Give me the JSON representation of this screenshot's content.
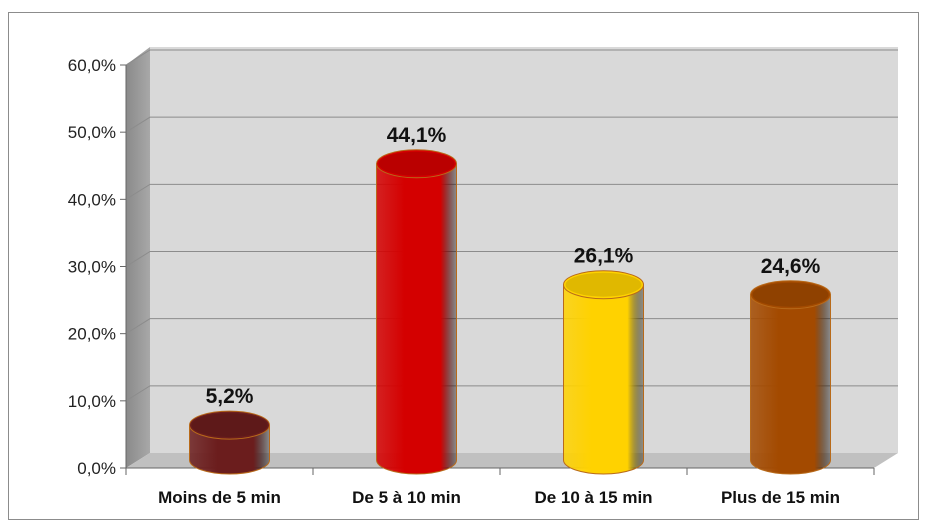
{
  "chart_data": {
    "type": "bar",
    "title": "",
    "xlabel": "",
    "ylabel": "",
    "categories": [
      "Moins de 5 min",
      "De 5 à 10 min",
      "De 10 à 15 min",
      "Plus de 15 min"
    ],
    "values": [
      5.2,
      44.1,
      26.1,
      24.6
    ],
    "data_labels": [
      "5,2%",
      "44,1%",
      "26,1%",
      "24,6%"
    ],
    "ylim": [
      0,
      60
    ],
    "yticks": [
      0,
      10,
      20,
      30,
      40,
      50,
      60
    ],
    "ytick_labels": [
      "0,0%",
      "10,0%",
      "20,0%",
      "30,0%",
      "40,0%",
      "50,0%",
      "60,0%"
    ],
    "grid": true,
    "legend": "none",
    "style": "3d-cylinder",
    "colors": [
      "#6b1d1d",
      "#d40000",
      "#ffd200",
      "#a34a00"
    ],
    "wall_color": "#d9d9d9",
    "floor_color": "#c0c0c0"
  }
}
